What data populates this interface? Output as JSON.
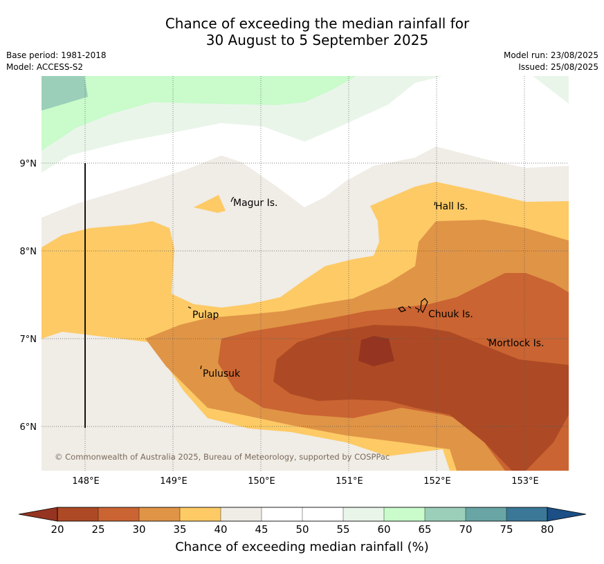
{
  "title": {
    "line1": "Chance of exceeding the median rainfall for",
    "line2": "30 August to 5 September 2025"
  },
  "meta": {
    "base_period": "Base period: 1981-2018",
    "model": "Model: ACCESS-S2",
    "model_run": "Model run: 23/08/2025",
    "issued": "Issued: 25/08/2025"
  },
  "map": {
    "lat_labels": [
      "9°N",
      "8°N",
      "7°N",
      "6°N"
    ],
    "lon_labels": [
      "148°E",
      "149°E",
      "150°E",
      "151°E",
      "152°E",
      "153°E"
    ],
    "places": [
      "Magur Is.",
      "Hall Is.",
      "Pulap",
      "Chuuk Is.",
      "Mortlock Is.",
      "Pulusuk"
    ],
    "copyright": "© Commonwealth of Australia 2025, Bureau of Meteorology, supported by COSPPac"
  },
  "colorbar": {
    "ticks": [
      "20",
      "25",
      "30",
      "35",
      "40",
      "45",
      "50",
      "55",
      "60",
      "65",
      "70",
      "75",
      "80"
    ],
    "colors": [
      "#ad4a25",
      "#ca6432",
      "#e09446",
      "#fdca65",
      "#f0ece6",
      "#ffffff",
      "#ffffff",
      "#eaf5ea",
      "#c9fbcb",
      "#9bcfb9",
      "#68a5a4",
      "#3b7797"
    ],
    "low_extend_color": "#953420",
    "high_extend_color": "#1b4f85",
    "label": "Chance of exceeding median rainfall (%)"
  }
}
